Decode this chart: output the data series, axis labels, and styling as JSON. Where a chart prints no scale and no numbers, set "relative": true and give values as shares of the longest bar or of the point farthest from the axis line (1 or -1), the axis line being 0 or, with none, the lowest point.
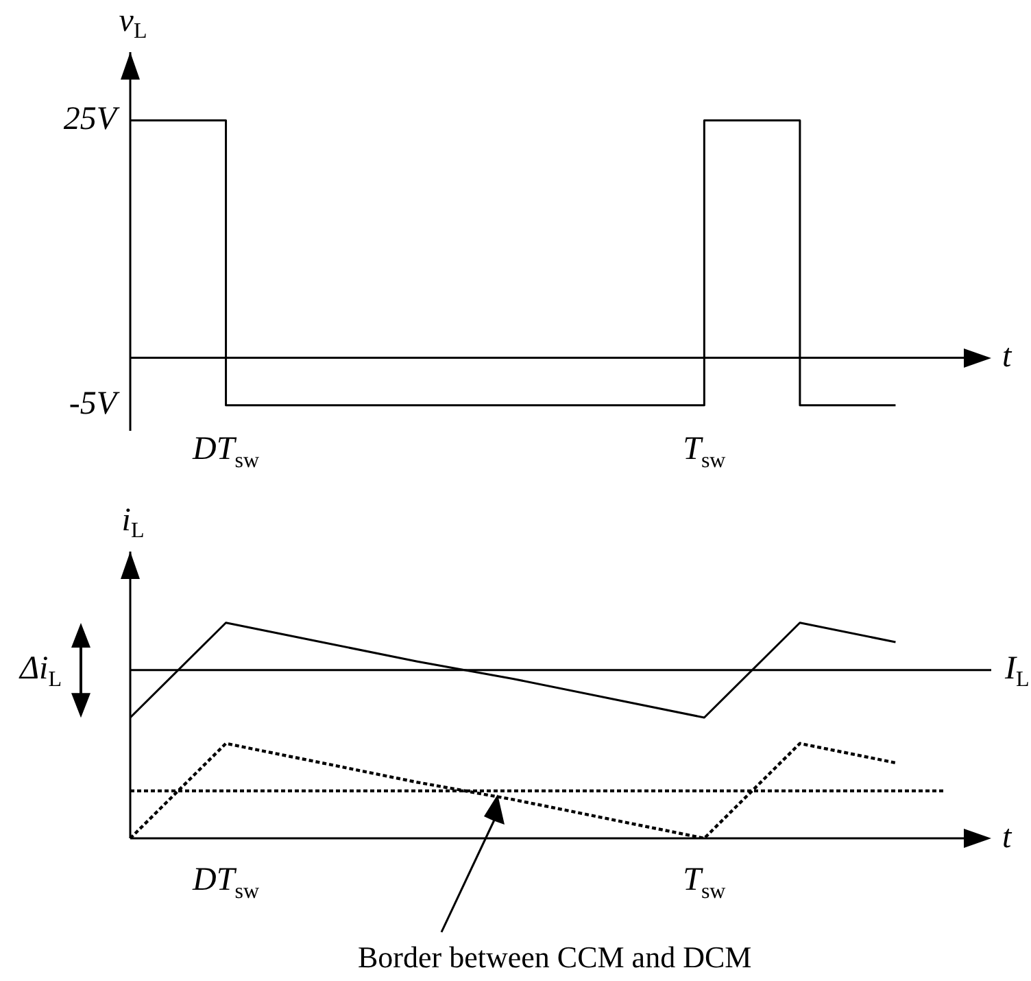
{
  "chart_data": [
    {
      "type": "step",
      "ylabel": "v$_{L}$",
      "xlabel": "t",
      "categories": [
        null,
        "DT$_{sw}$",
        null,
        null,
        null,
        null,
        "T$_{sw}$",
        null,
        null,
        null
      ],
      "series": [
        {
          "color": "#000000",
          "values": [
            25,
            -5,
            -5,
            -5,
            -5,
            -5,
            25,
            -5,
            -5,
            null
          ]
        }
      ],
      "ylim": [
        -7.7,
        32.2
      ],
      "yticks": [
        {
          "value": 25,
          "label": "25V"
        },
        {
          "value": -5,
          "label": "-5V"
        }
      ],
      "marker": "none"
    },
    {
      "type": "line",
      "relative": true,
      "ylabel": "i$_{L}$",
      "xlabel": "t",
      "categories": [
        null,
        "DT$_{sw}$",
        null,
        null,
        null,
        null,
        "T$_{sw}$",
        null,
        null,
        null
      ],
      "series": [
        {
          "color": "#000000",
          "values": [
            0.56,
            1,
            0.91,
            0.82,
            0.74,
            0.65,
            0.56,
            1,
            0.91,
            null
          ],
          "line_style": "solid"
        },
        {
          "color": "#000000",
          "values": [
            0,
            0.44,
            0.35,
            0.26,
            0.18,
            0.09,
            0,
            0.44,
            0.35,
            null
          ],
          "line_style": "dotted"
        }
      ],
      "ref_lines": [
        {
          "axis": "y",
          "value": 0.78,
          "label": "I$_{L}$",
          "line_style": "solid",
          "color": "#000000"
        },
        {
          "axis": "y",
          "value": 0.22,
          "line_style": "dotted",
          "color": "#000000"
        }
      ],
      "annotations": [
        "Δi$_{L}$",
        "Border between CCM and DCM"
      ],
      "marker": "none"
    }
  ]
}
